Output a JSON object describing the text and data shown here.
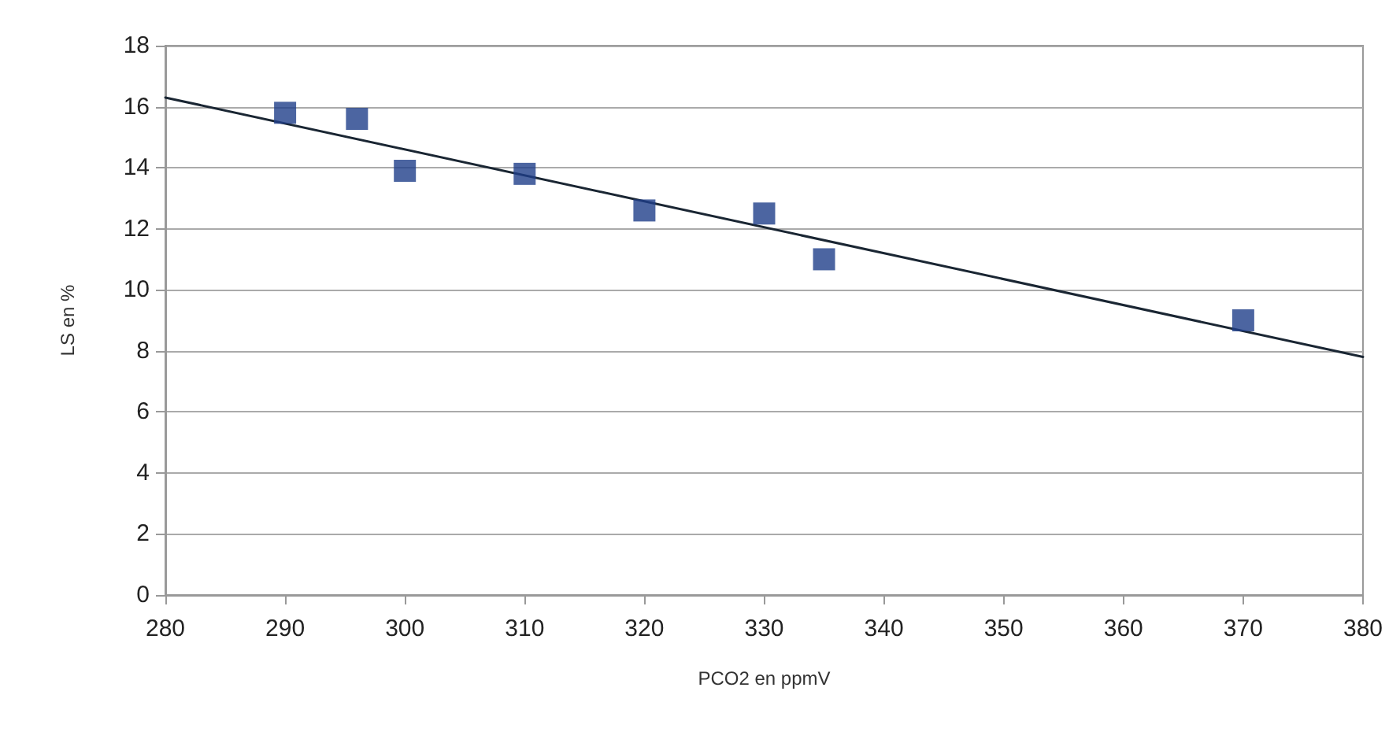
{
  "chart_data": {
    "type": "scatter",
    "xlabel": "PCO2 en ppmV",
    "ylabel": "LS en %",
    "xlim": [
      280,
      380
    ],
    "xticks": [
      280,
      290,
      300,
      310,
      320,
      330,
      340,
      350,
      360,
      370,
      380
    ],
    "ylim": [
      0,
      18
    ],
    "yticks": [
      0,
      2,
      4,
      6,
      8,
      10,
      12,
      14,
      16,
      18
    ],
    "grid": "y",
    "marker": "square",
    "series": [
      {
        "color": "#1f3f8a",
        "x": [
          290,
          296,
          300,
          310,
          320,
          330,
          335,
          370
        ],
        "values": [
          15.8,
          15.6,
          13.9,
          13.8,
          12.6,
          12.5,
          11.0,
          9.0
        ]
      },
      {
        "type": "line",
        "color": "#1a2633",
        "x": [
          280,
          380
        ],
        "values": [
          16.3,
          7.8
        ],
        "marker": "none",
        "line_style": "solid"
      }
    ]
  }
}
